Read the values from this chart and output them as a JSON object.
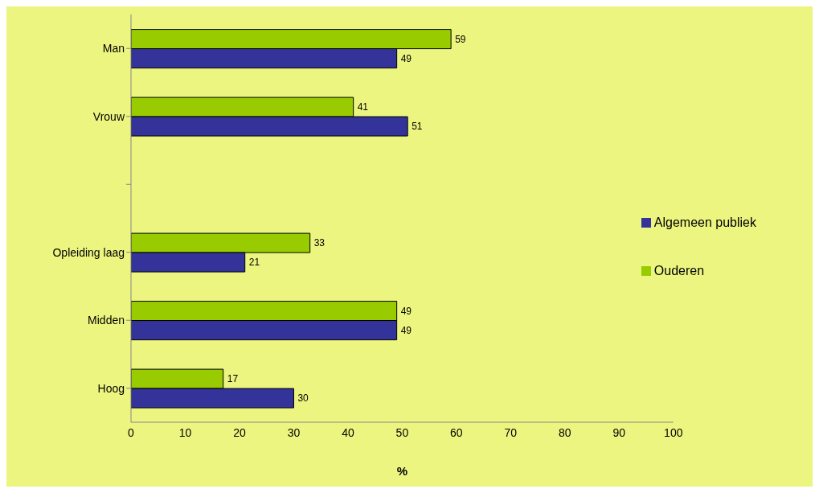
{
  "chart_data": {
    "type": "bar",
    "orientation": "horizontal",
    "categories": [
      "Man",
      "Vrouw",
      null,
      "Opleiding laag",
      "Midden",
      "Hoog"
    ],
    "series": [
      {
        "name": "Ouderen",
        "color": "#99cc00",
        "values": [
          59,
          41,
          null,
          33,
          49,
          17
        ]
      },
      {
        "name": "Algemeen publiek",
        "color": "#333399",
        "values": [
          49,
          51,
          null,
          21,
          49,
          30
        ]
      }
    ],
    "xlabel": "%",
    "xlim": [
      0,
      100
    ],
    "xticks": [
      0,
      10,
      20,
      30,
      40,
      50,
      60,
      70,
      80,
      90,
      100
    ],
    "data_labels": true,
    "grid": false,
    "legend": "right"
  }
}
